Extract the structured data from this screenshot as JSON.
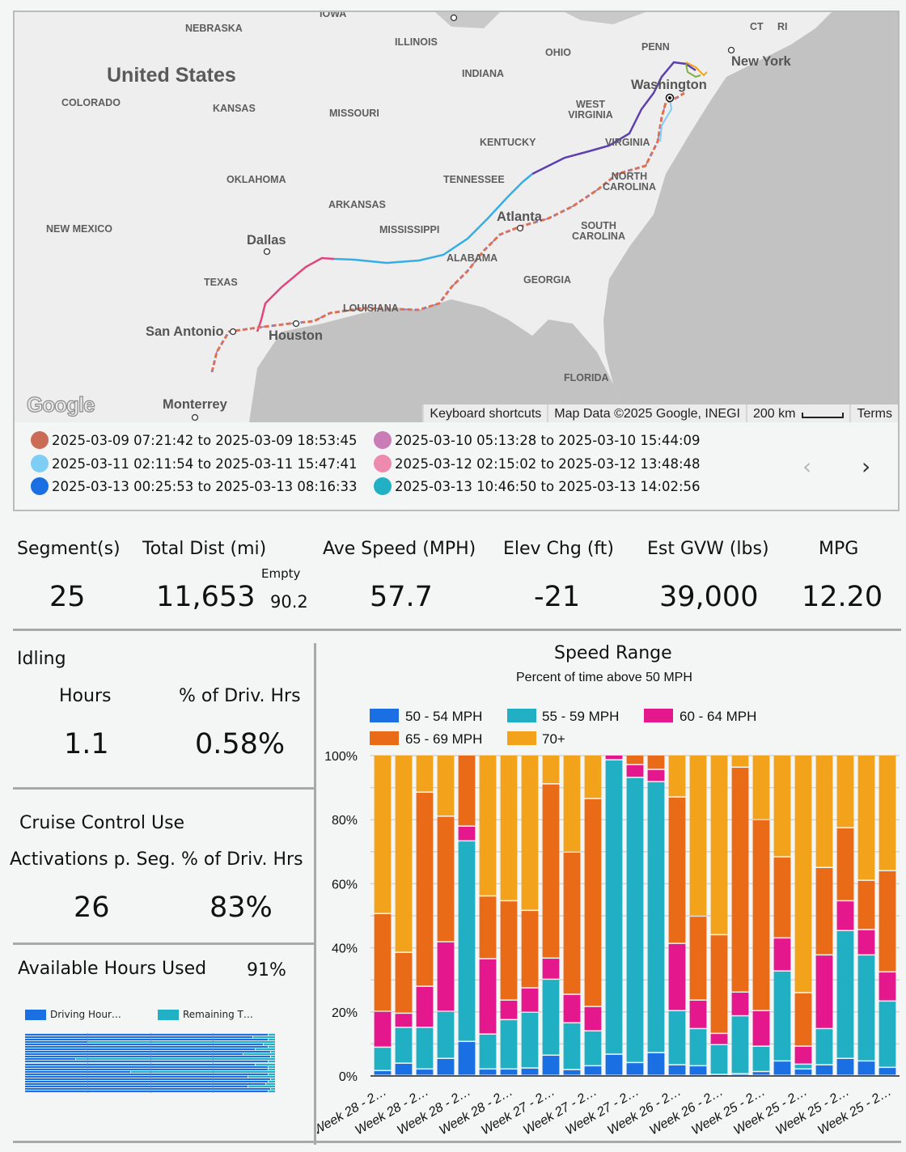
{
  "map": {
    "country_label": "United States",
    "region_labels": [
      "NEBRASKA",
      "IOWA",
      "ILLINOIS",
      "OHIO",
      "PENN",
      "CT",
      "RI",
      "INDIANA",
      "COLORADO",
      "KANSAS",
      "MISSOURI",
      "WEST VIRGINIA",
      "KENTUCKY",
      "VIRGINIA",
      "OKLAHOMA",
      "TENNESSEE",
      "NORTH CAROLINA",
      "ARKANSAS",
      "MISSISSIPPI",
      "NEW MEXICO",
      "SOUTH CAROLINA",
      "ALABAMA",
      "GEORGIA",
      "TEXAS",
      "LOUISIANA",
      "FLORIDA"
    ],
    "city_labels": [
      "New York",
      "Washington",
      "Atlanta",
      "Dallas",
      "San Antonio",
      "Houston",
      "Monterrey"
    ],
    "logo_text": "Google",
    "footer": {
      "keyboard_shortcuts": "Keyboard shortcuts",
      "map_data": "Map Data ©2025 Google, INEGI",
      "scale": "200 km",
      "terms": "Terms"
    },
    "route_legend": [
      {
        "label": "2025-03-09 07:21:42 to 2025-03-09 18:53:45",
        "color": "#c96b55"
      },
      {
        "label": "2025-03-10 05:13:28 to 2025-03-10 15:44:09",
        "color": "#c97cb6"
      },
      {
        "label": "2025-03-11 02:11:54 to 2025-03-11 15:47:41",
        "color": "#7ecdf5"
      },
      {
        "label": "2025-03-12 02:15:02 to 2025-03-12 13:48:48",
        "color": "#ee8aae"
      },
      {
        "label": "2025-03-13 00:25:53 to 2025-03-13 08:16:33",
        "color": "#1a6fe3"
      },
      {
        "label": "2025-03-13 10:46:50 to 2025-03-13 14:02:56",
        "color": "#22b0c4"
      }
    ],
    "pager_prev": "‹",
    "pager_next": "›",
    "pager_prev_icon": "chevron-left-icon",
    "pager_next_icon": "chevron-right-icon"
  },
  "kpis": {
    "segments": {
      "label": "Segment(s)",
      "value": "25"
    },
    "total_dist": {
      "label": "Total Dist (mi)",
      "value": "11,653",
      "empty_label": "Empty",
      "empty_value": "90.2"
    },
    "ave_speed": {
      "label": "Ave Speed (MPH)",
      "value": "57.7"
    },
    "elev_chg": {
      "label": "Elev Chg (ft)",
      "value": "-21"
    },
    "est_gvw": {
      "label": "Est GVW (lbs)",
      "value": "39,000"
    },
    "mpg": {
      "label": "MPG",
      "value": "12.20"
    }
  },
  "idling": {
    "title": "Idling",
    "hours_label": "Hours",
    "hours_value": "1.1",
    "pct_label": "% of Driv. Hrs",
    "pct_value": "0.58%"
  },
  "cruise": {
    "title": "Cruise Control Use",
    "activations_label": "Activations p. Seg.",
    "activations_value": "26",
    "pct_label": "% of Driv. Hrs",
    "pct_value": "83%"
  },
  "available_hours": {
    "title": "Available Hours Used",
    "value": "91%",
    "legend": [
      {
        "label": "Driving Hour…",
        "color": "#1a6fe3"
      },
      {
        "label": "Remaining T…",
        "color": "#22b0c4"
      }
    ],
    "driving_fraction_per_row": [
      0.97,
      0.91,
      0.97,
      0.25,
      0.95,
      0.97,
      0.92,
      0.98,
      0.87,
      0.98,
      0.2,
      0.97,
      0.92,
      0.97,
      0.97,
      0.42,
      0.97,
      0.89,
      0.98,
      0.97,
      0.96,
      0.89,
      0.98,
      0.97
    ]
  },
  "chart_data": {
    "type": "bar",
    "stacked": true,
    "title": "Speed Range",
    "subtitle": "Percent of time above 50 MPH",
    "xlabel": "",
    "ylabel": "",
    "ylim": [
      0,
      100
    ],
    "yticks": [
      "0%",
      "20%",
      "40%",
      "60%",
      "80%",
      "100%"
    ],
    "ytick_values": [
      0,
      20,
      40,
      60,
      80,
      100
    ],
    "grid": true,
    "legend_position": "top",
    "categories": [
      "Week 28 - 2…",
      "Week 28 - 2…",
      "Week 28 - 2…",
      "Week 28 - 2…",
      "Week 28 - 2…",
      "Week 28 - 2…",
      "Week 28 - 2…",
      "Week 27 - 2…",
      "Week 27 - 2…",
      "Week 27 - 2…",
      "Week 27 - 2…",
      "Week 27 - 2…",
      "Week 27 - 2…",
      "Week 26 - 2…",
      "Week 26 - 2…",
      "Week 26 - 2…",
      "Week 26 - 2…",
      "Week 25 - 2…",
      "Week 25 - 2…",
      "Week 25 - 2…",
      "Week 25 - 2…",
      "Week 25 - 2…",
      "Week 25 - 2…",
      "Week 25 - 2…",
      "Week 25 - 2…"
    ],
    "visible_tick_labels": [
      "Week 28 - 2…",
      "Week 28 - 2…",
      "Week 28 - 2…",
      "Week 28 - 2…",
      "Week 27 - 2…",
      "Week 27 - 2…",
      "Week 27 - 2…",
      "Week 26 - 2…",
      "Week 26 - 2…",
      "Week 25 - 2…",
      "Week 25 - 2…",
      "Week 25 - 2…",
      "Week 25 - 2…"
    ],
    "series": [
      {
        "name": "50 - 54 MPH",
        "color": "#1a6fe3",
        "values": [
          1.5,
          3.8,
          2.0,
          5.3,
          10.6,
          2.0,
          2.0,
          2.3,
          6.3,
          1.8,
          3.0,
          6.6,
          4.0,
          7.1,
          3.3,
          3.0,
          0.3,
          0.5,
          1.2,
          4.5,
          2.0,
          3.3,
          5.3,
          4.5,
          2.5
        ]
      },
      {
        "name": "55 - 59 MPH",
        "color": "#20afc3",
        "values": [
          7.3,
          11.2,
          13.0,
          14.7,
          62.6,
          10.9,
          15.4,
          17.4,
          23.7,
          14.6,
          10.9,
          91.9,
          89.0,
          84.6,
          16.9,
          11.6,
          9.3,
          18.1,
          7.9,
          28.1,
          1.5,
          11.3,
          39.9,
          33.1,
          20.7
        ]
      },
      {
        "name": "60 - 64 MPH",
        "color": "#e5178d",
        "values": [
          11.2,
          4.4,
          12.8,
          21.7,
          4.6,
          23.5,
          6.1,
          7.6,
          6.6,
          8.9,
          7.6,
          1.5,
          4.0,
          3.8,
          21.0,
          8.9,
          3.5,
          7.4,
          11.1,
          10.3,
          5.6,
          23.0,
          9.3,
          7.9,
          9.1
        ]
      },
      {
        "name": "65 - 69 MPH",
        "color": "#e96a17",
        "values": [
          30.5,
          19.0,
          60.6,
          39.2,
          22.2,
          19.6,
          31.0,
          24.2,
          54.4,
          44.4,
          64.9,
          0,
          3.0,
          4.5,
          45.7,
          26.2,
          30.8,
          70.2,
          59.6,
          25.3,
          16.7,
          27.3,
          22.8,
          15.4,
          31.6
        ]
      },
      {
        "name": "70+",
        "color": "#f3a31b",
        "values": [
          49.5,
          61.6,
          11.6,
          19.1,
          0,
          44.0,
          45.5,
          48.5,
          9.0,
          30.3,
          13.6,
          0,
          0,
          0,
          13.1,
          50.3,
          56.1,
          3.8,
          20.2,
          31.8,
          74.2,
          35.1,
          22.7,
          39.1,
          36.1
        ]
      }
    ]
  }
}
